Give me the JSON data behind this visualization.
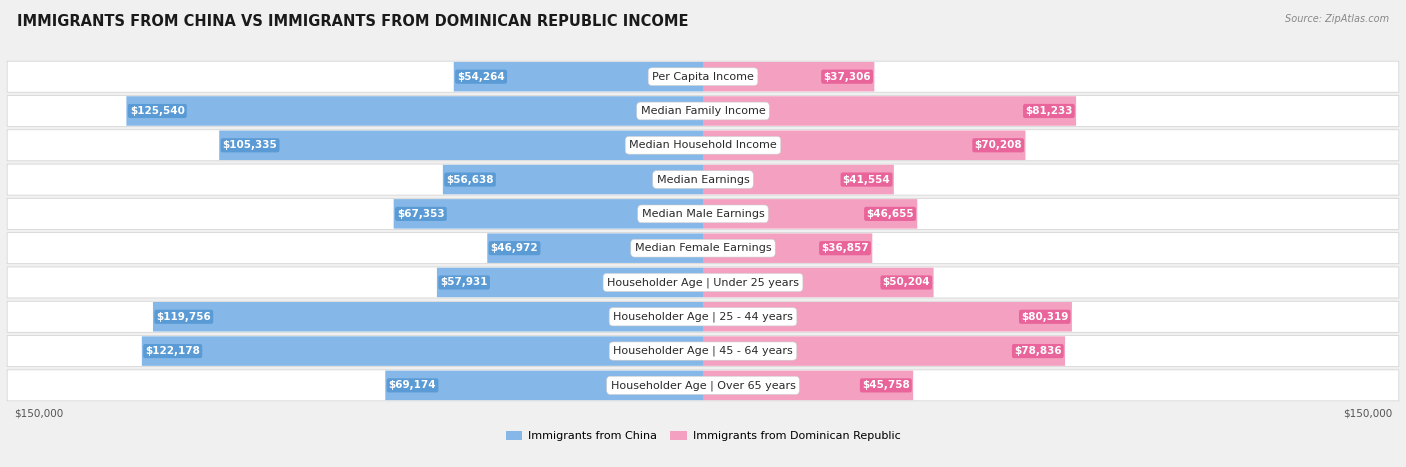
{
  "title": "IMMIGRANTS FROM CHINA VS IMMIGRANTS FROM DOMINICAN REPUBLIC INCOME",
  "source": "Source: ZipAtlas.com",
  "categories": [
    "Per Capita Income",
    "Median Family Income",
    "Median Household Income",
    "Median Earnings",
    "Median Male Earnings",
    "Median Female Earnings",
    "Householder Age | Under 25 years",
    "Householder Age | 25 - 44 years",
    "Householder Age | 45 - 64 years",
    "Householder Age | Over 65 years"
  ],
  "china_values": [
    54264,
    125540,
    105335,
    56638,
    67353,
    46972,
    57931,
    119756,
    122178,
    69174
  ],
  "dr_values": [
    37306,
    81233,
    70208,
    41554,
    46655,
    36857,
    50204,
    80319,
    78836,
    45758
  ],
  "china_labels": [
    "$54,264",
    "$125,540",
    "$105,335",
    "$56,638",
    "$67,353",
    "$46,972",
    "$57,931",
    "$119,756",
    "$122,178",
    "$69,174"
  ],
  "dr_labels": [
    "$37,306",
    "$81,233",
    "$70,208",
    "$41,554",
    "$46,655",
    "$36,857",
    "$50,204",
    "$80,319",
    "$78,836",
    "$45,758"
  ],
  "china_color": "#85b8e8",
  "china_dark": "#5b9bd5",
  "dr_color": "#f4a0c0",
  "dr_dark": "#e8649a",
  "max_value": 150000,
  "x_label_left": "$150,000",
  "x_label_right": "$150,000",
  "legend_china": "Immigrants from China",
  "legend_dr": "Immigrants from Dominican Republic",
  "bg_color": "#f0f0f0",
  "row_bg": "#ffffff",
  "row_border": "#d0d0d0",
  "inside_label_threshold": 35000,
  "cat_label_fontsize": 8.0,
  "val_label_fontsize": 7.5
}
